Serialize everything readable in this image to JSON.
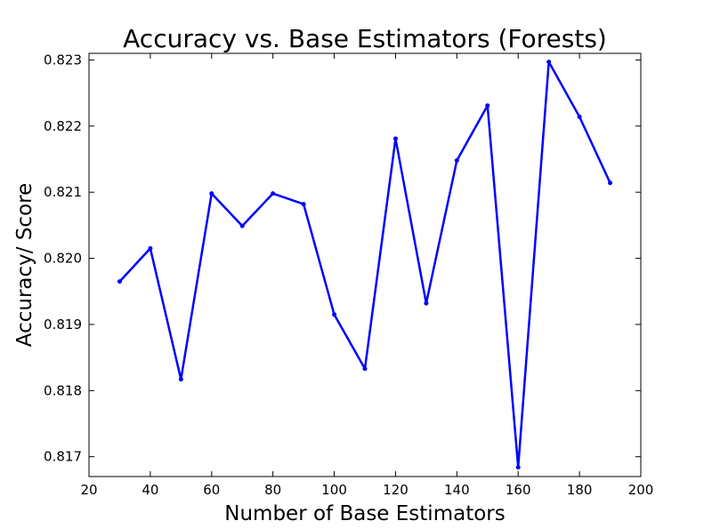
{
  "chart_data": {
    "type": "line",
    "title": "Accuracy vs. Base Estimators (Forests)",
    "xlabel": "Number of Base Estimators",
    "ylabel": "Accuracy/ Score",
    "xlim": [
      20,
      200
    ],
    "ylim": [
      0.8167,
      0.8231
    ],
    "xticks": [
      20,
      40,
      60,
      80,
      100,
      120,
      140,
      160,
      180,
      200
    ],
    "xtick_labels": [
      "20",
      "40",
      "60",
      "80",
      "100",
      "120",
      "140",
      "160",
      "180",
      "200"
    ],
    "yticks": [
      0.817,
      0.818,
      0.819,
      0.82,
      0.821,
      0.822,
      0.823
    ],
    "ytick_labels": [
      "0.817",
      "0.818",
      "0.819",
      "0.820",
      "0.821",
      "0.822",
      "0.823"
    ],
    "grid": false,
    "series": [
      {
        "color": "#0000ff",
        "x": [
          30,
          40,
          50,
          60,
          70,
          80,
          90,
          100,
          110,
          120,
          130,
          140,
          150,
          160,
          170,
          180,
          190
        ],
        "y": [
          0.81965,
          0.82015,
          0.81817,
          0.82098,
          0.82049,
          0.82098,
          0.82082,
          0.81915,
          0.81833,
          0.82181,
          0.81932,
          0.82148,
          0.82231,
          0.81684,
          0.82297,
          0.82214,
          0.82114
        ]
      }
    ]
  }
}
